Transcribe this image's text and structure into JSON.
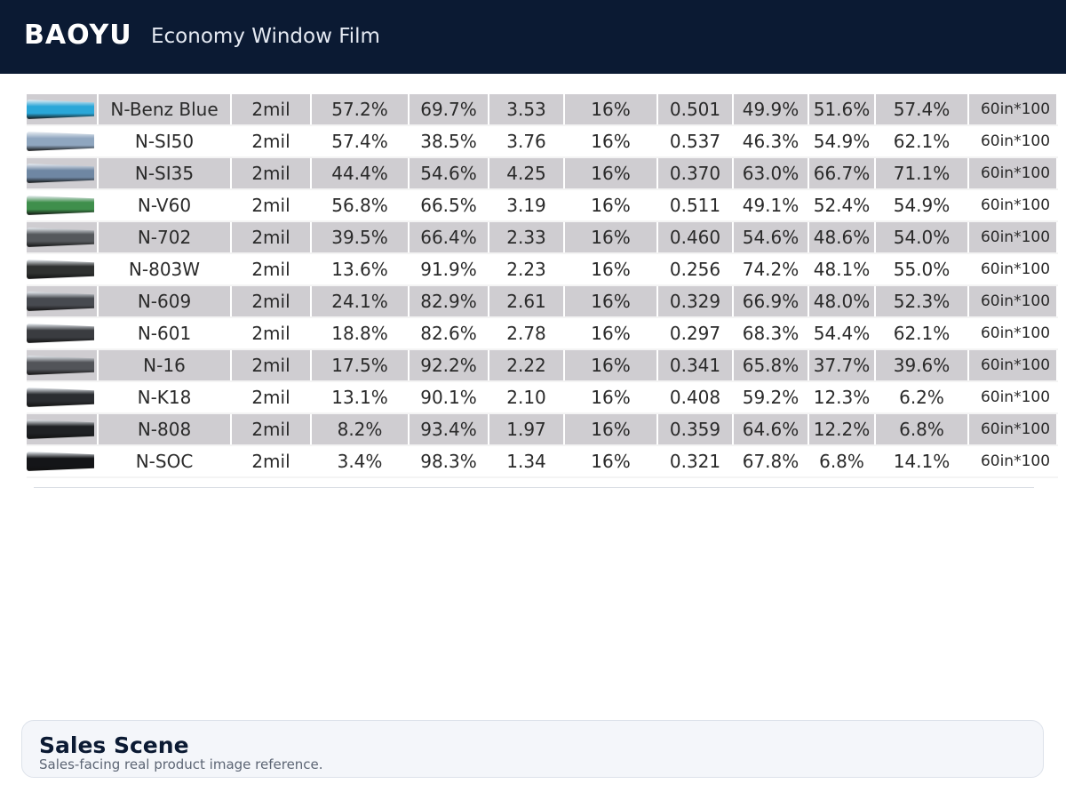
{
  "header": {
    "brand": "BAOYU",
    "title": "Economy Window Film"
  },
  "product_table": {
    "rows": [
      {
        "name": "N-Benz Blue",
        "thickness": "2mil",
        "c1": "57.2%",
        "c2": "69.7%",
        "c3": "3.53",
        "c4": "16%",
        "c5": "0.501",
        "c6": "49.9%",
        "c7": "51.6%",
        "c8": "57.4%",
        "size": "60in*100",
        "swatch": "#2aa7d8"
      },
      {
        "name": "N-SI50",
        "thickness": "2mil",
        "c1": "57.4%",
        "c2": "38.5%",
        "c3": "3.76",
        "c4": "16%",
        "c5": "0.537",
        "c6": "46.3%",
        "c7": "54.9%",
        "c8": "62.1%",
        "size": "60in*100",
        "swatch": "#8fa6bf"
      },
      {
        "name": "N-SI35",
        "thickness": "2mil",
        "c1": "44.4%",
        "c2": "54.6%",
        "c3": "4.25",
        "c4": "16%",
        "c5": "0.370",
        "c6": "63.0%",
        "c7": "66.7%",
        "c8": "71.1%",
        "size": "60in*100",
        "swatch": "#6f87a3"
      },
      {
        "name": "N-V60",
        "thickness": "2mil",
        "c1": "56.8%",
        "c2": "66.5%",
        "c3": "3.19",
        "c4": "16%",
        "c5": "0.511",
        "c6": "49.1%",
        "c7": "52.4%",
        "c8": "54.9%",
        "size": "60in*100",
        "swatch": "#3f8f4c"
      },
      {
        "name": "N-702",
        "thickness": "2mil",
        "c1": "39.5%",
        "c2": "66.4%",
        "c3": "2.33",
        "c4": "16%",
        "c5": "0.460",
        "c6": "54.6%",
        "c7": "48.6%",
        "c8": "54.0%",
        "size": "60in*100",
        "swatch": "#55585c"
      },
      {
        "name": "N-803W",
        "thickness": "2mil",
        "c1": "13.6%",
        "c2": "91.9%",
        "c3": "2.23",
        "c4": "16%",
        "c5": "0.256",
        "c6": "74.2%",
        "c7": "48.1%",
        "c8": "55.0%",
        "size": "60in*100",
        "swatch": "#2f3130"
      },
      {
        "name": "N-609",
        "thickness": "2mil",
        "c1": "24.1%",
        "c2": "82.9%",
        "c3": "2.61",
        "c4": "16%",
        "c5": "0.329",
        "c6": "66.9%",
        "c7": "48.0%",
        "c8": "52.3%",
        "size": "60in*100",
        "swatch": "#474a50"
      },
      {
        "name": "N-601",
        "thickness": "2mil",
        "c1": "18.8%",
        "c2": "82.6%",
        "c3": "2.78",
        "c4": "16%",
        "c5": "0.297",
        "c6": "68.3%",
        "c7": "54.4%",
        "c8": "62.1%",
        "size": "60in*100",
        "swatch": "#3a3c40"
      },
      {
        "name": "N-16",
        "thickness": "2mil",
        "c1": "17.5%",
        "c2": "92.2%",
        "c3": "2.22",
        "c4": "16%",
        "c5": "0.341",
        "c6": "65.8%",
        "c7": "37.7%",
        "c8": "39.6%",
        "size": "60in*100",
        "swatch": "#525459"
      },
      {
        "name": "N-K18",
        "thickness": "2mil",
        "c1": "13.1%",
        "c2": "90.1%",
        "c3": "2.10",
        "c4": "16%",
        "c5": "0.408",
        "c6": "59.2%",
        "c7": "12.3%",
        "c8": "6.2%",
        "size": "60in*100",
        "swatch": "#2b2d31"
      },
      {
        "name": "N-808",
        "thickness": "2mil",
        "c1": "8.2%",
        "c2": "93.4%",
        "c3": "1.97",
        "c4": "16%",
        "c5": "0.359",
        "c6": "64.6%",
        "c7": "12.2%",
        "c8": "6.8%",
        "size": "60in*100",
        "swatch": "#1f2124"
      },
      {
        "name": "N-SOC",
        "thickness": "2mil",
        "c1": "3.4%",
        "c2": "98.3%",
        "c3": "1.34",
        "c4": "16%",
        "c5": "0.321",
        "c6": "67.8%",
        "c7": "6.8%",
        "c8": "14.1%",
        "size": "60in*100",
        "swatch": "#141518"
      }
    ]
  },
  "card": {
    "title": "Sales Scene",
    "subtitle": "Sales-facing real product image reference."
  }
}
